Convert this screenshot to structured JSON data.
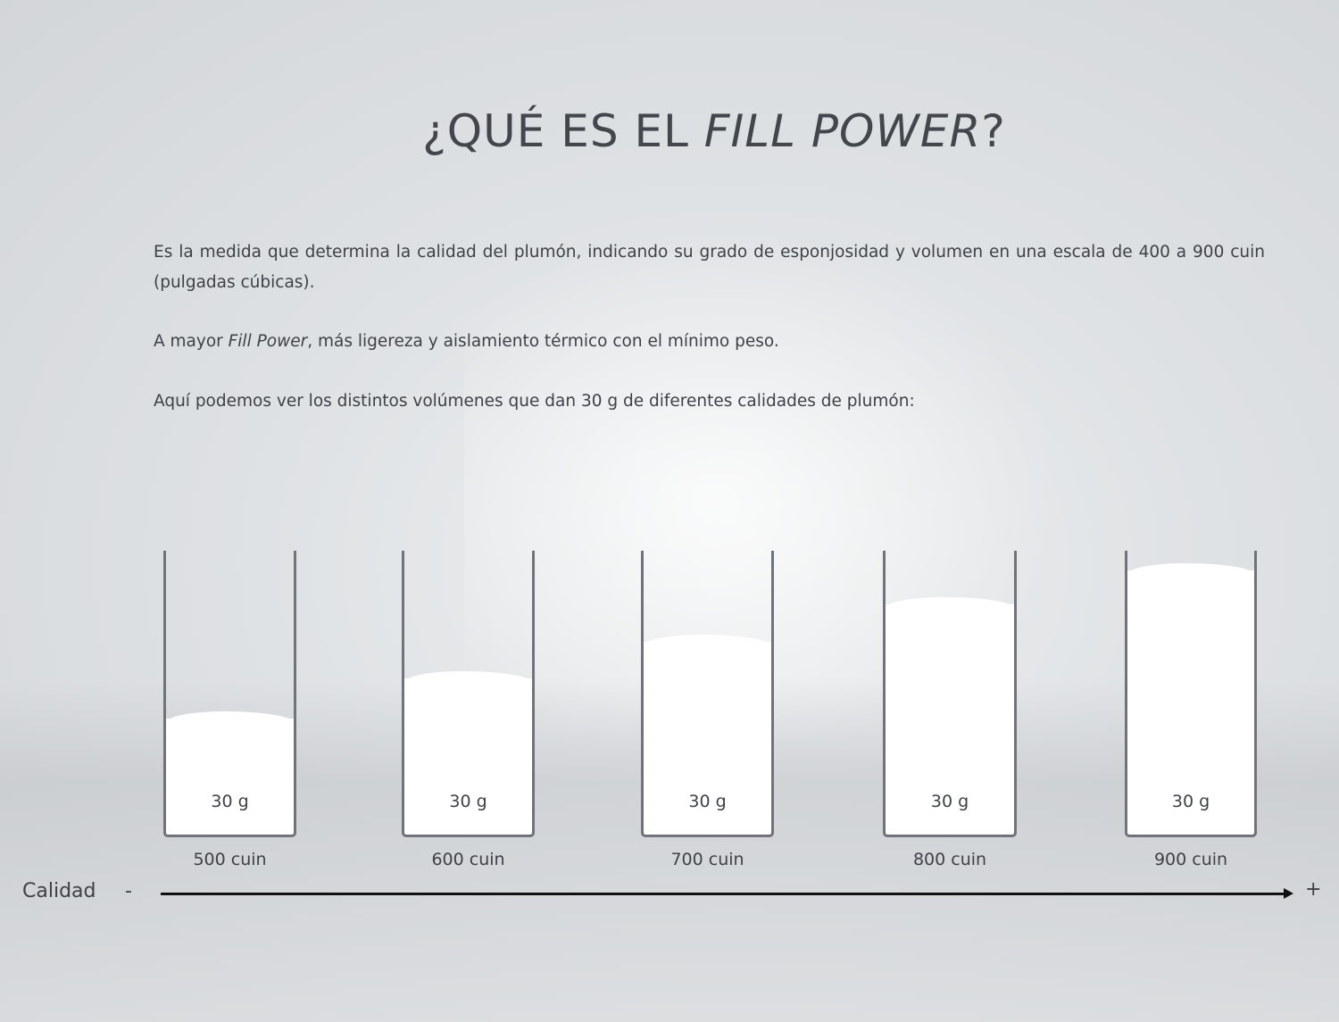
{
  "title": {
    "prefix": "¿QUÉ ES EL ",
    "emphasis": "FILL POWER",
    "suffix": "?"
  },
  "paragraphs": {
    "p1": "Es la medida que determina la calidad del plumón, indicando su grado de esponjosidad y volumen en una escala de 400 a 900 cuin (pulgadas cúbicas).",
    "p2_before": "A mayor ",
    "p2_emphasis": "Fill Power",
    "p2_after": ", más ligereza y aislamiento térmico con el mínimo peso.",
    "p3": "Aquí podemos ver los distintos volúmenes que dan 30 g de diferentes calidades de plumón:"
  },
  "containers": [
    {
      "weight": "30 g",
      "label": "500 cuin",
      "fill_level": 0.41
    },
    {
      "weight": "30 g",
      "label": "600 cuin",
      "fill_level": 0.55
    },
    {
      "weight": "30 g",
      "label": "700 cuin",
      "fill_level": 0.68
    },
    {
      "weight": "30 g",
      "label": "800 cuin",
      "fill_level": 0.81
    },
    {
      "weight": "30 g",
      "label": "900 cuin",
      "fill_level": 0.93
    }
  ],
  "axis": {
    "label": "Calidad",
    "min_symbol": "-",
    "max_symbol": "+"
  }
}
